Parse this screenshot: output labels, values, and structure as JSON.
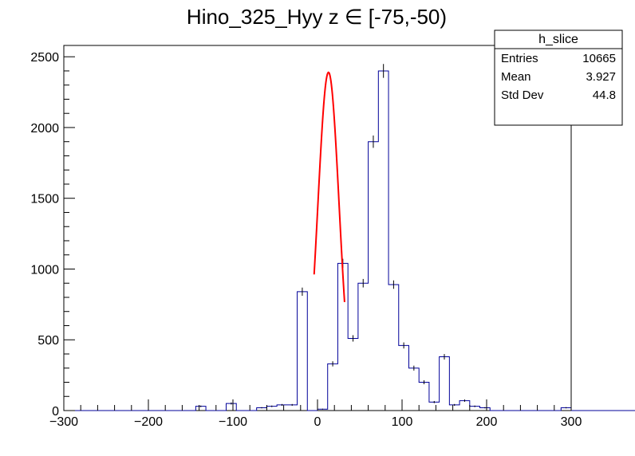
{
  "chart_data": {
    "type": "histogram",
    "title": "Hino_325_Hyy z  ∈ [-75,-50)",
    "xlabel": "",
    "ylabel": "",
    "xlim": [
      -300,
      300
    ],
    "ylim": [
      0,
      2580
    ],
    "x_ticks": [
      -300,
      -200,
      -100,
      0,
      100,
      200,
      300
    ],
    "y_ticks": [
      0,
      500,
      1000,
      1500,
      2000,
      2500
    ],
    "bin_width": 12,
    "bin_edges_start": -300,
    "bin_counts": [
      0,
      0,
      0,
      0,
      0,
      0,
      0,
      0,
      0,
      0,
      0,
      0,
      0,
      30,
      0,
      0,
      50,
      0,
      0,
      20,
      30,
      40,
      40,
      840,
      0,
      10,
      330,
      1040,
      510,
      900,
      1900,
      2400,
      890,
      460,
      300,
      200,
      60,
      380,
      40,
      70,
      30,
      20,
      0,
      0,
      0,
      0,
      0,
      0,
      0,
      20,
      0,
      0,
      0,
      0,
      0,
      0,
      0,
      0,
      0,
      0
    ],
    "fit": {
      "function": "gaussian",
      "amplitude": 2390,
      "mean": 13,
      "sigma": 12.6,
      "x_range": [
        -4,
        32
      ],
      "color": "#ff0000"
    },
    "histogram_color": "#000099",
    "grid": false
  },
  "stats_box": {
    "name": "h_slice",
    "rows": [
      {
        "label": "Entries",
        "value": "10665"
      },
      {
        "label": "Mean",
        "value": "3.927"
      },
      {
        "label": "Std Dev",
        "value": "44.8"
      }
    ]
  }
}
